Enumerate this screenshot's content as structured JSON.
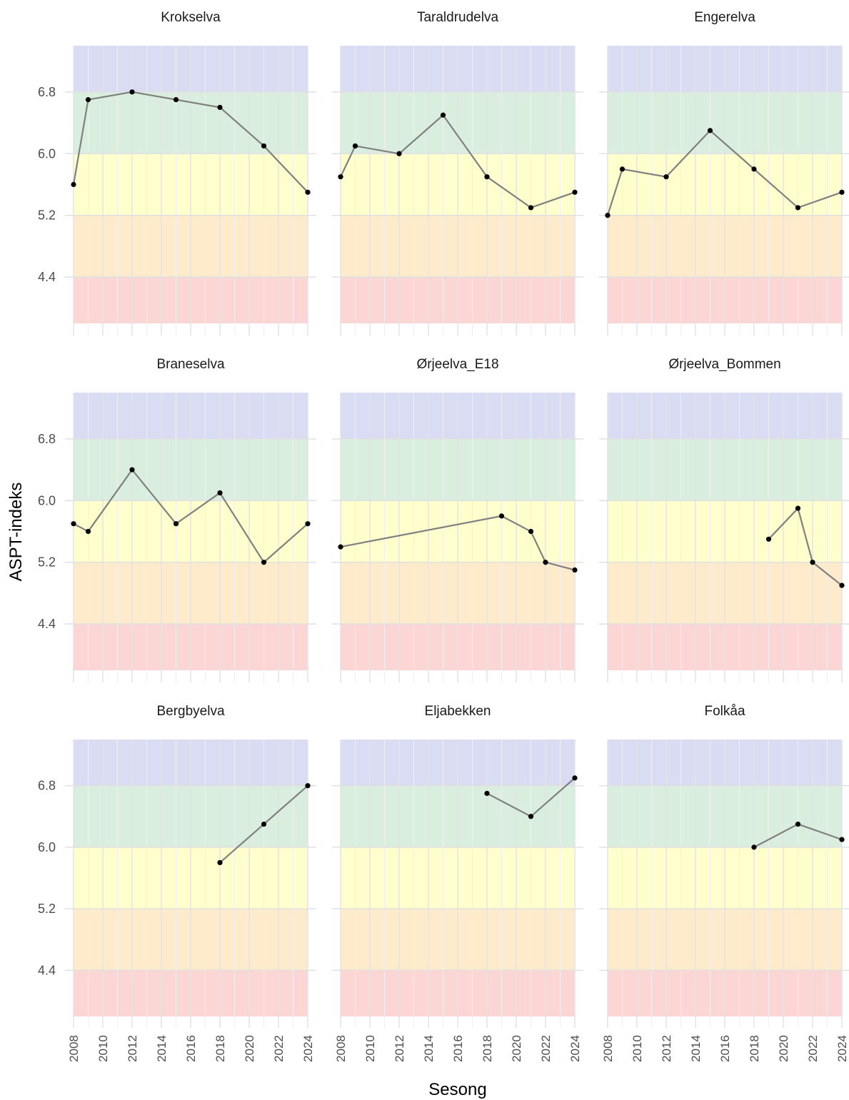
{
  "chart_data": {
    "type": "line",
    "xlabel": "Sesong",
    "ylabel": "ASPT-indeks",
    "xlim": [
      2008,
      2024
    ],
    "ylim": [
      3.8,
      7.4
    ],
    "x_ticks": [
      2008,
      2010,
      2012,
      2014,
      2016,
      2018,
      2020,
      2022,
      2024
    ],
    "y_ticks": [
      4.4,
      5.2,
      6.0,
      6.8
    ],
    "y_tick_labels": [
      "4.4",
      "5.2",
      "6.0",
      "6.8"
    ],
    "bands": [
      {
        "from": 6.8,
        "to": 7.4,
        "color": "#dadcf3"
      },
      {
        "from": 6.0,
        "to": 6.8,
        "color": "#d9eedf"
      },
      {
        "from": 5.2,
        "to": 6.0,
        "color": "#feffcc"
      },
      {
        "from": 4.4,
        "to": 5.2,
        "color": "#fdebcc"
      },
      {
        "from": 3.8,
        "to": 4.4,
        "color": "#fbd6d5"
      }
    ],
    "line_color": "#808080",
    "point_color": "#000000",
    "grid": true,
    "panels": [
      {
        "title": "Krokselva",
        "x": [
          2008,
          2009,
          2012,
          2015,
          2018,
          2021,
          2024
        ],
        "y": [
          5.6,
          6.7,
          6.8,
          6.7,
          6.6,
          6.1,
          5.5
        ]
      },
      {
        "title": "Taraldrudelva",
        "x": [
          2008,
          2009,
          2012,
          2015,
          2018,
          2021,
          2024
        ],
        "y": [
          5.7,
          6.1,
          6.0,
          6.5,
          5.7,
          5.3,
          5.5
        ]
      },
      {
        "title": "Engerelva",
        "x": [
          2008,
          2009,
          2012,
          2015,
          2018,
          2021,
          2024
        ],
        "y": [
          5.2,
          5.8,
          5.7,
          6.3,
          5.8,
          5.3,
          5.5
        ]
      },
      {
        "title": "Braneselva",
        "x": [
          2008,
          2009,
          2012,
          2015,
          2018,
          2021,
          2024
        ],
        "y": [
          5.7,
          5.6,
          6.4,
          5.7,
          6.1,
          5.2,
          5.7
        ]
      },
      {
        "title": "Ørjeelva_E18",
        "x": [
          2008,
          2019,
          2021,
          2022,
          2024
        ],
        "y": [
          5.4,
          5.8,
          5.6,
          5.2,
          5.1
        ]
      },
      {
        "title": "Ørjeelva_Bommen",
        "x": [
          2019,
          2021,
          2022,
          2024
        ],
        "y": [
          5.5,
          5.9,
          5.2,
          4.9
        ]
      },
      {
        "title": "Bergbyelva",
        "x": [
          2018,
          2021,
          2024
        ],
        "y": [
          5.8,
          6.3,
          6.8
        ]
      },
      {
        "title": "Eljabekken",
        "x": [
          2018,
          2021,
          2024
        ],
        "y": [
          6.7,
          6.4,
          6.9
        ]
      },
      {
        "title": "Folkåa",
        "x": [
          2018,
          2021,
          2024
        ],
        "y": [
          6.0,
          6.3,
          6.1
        ]
      }
    ]
  }
}
